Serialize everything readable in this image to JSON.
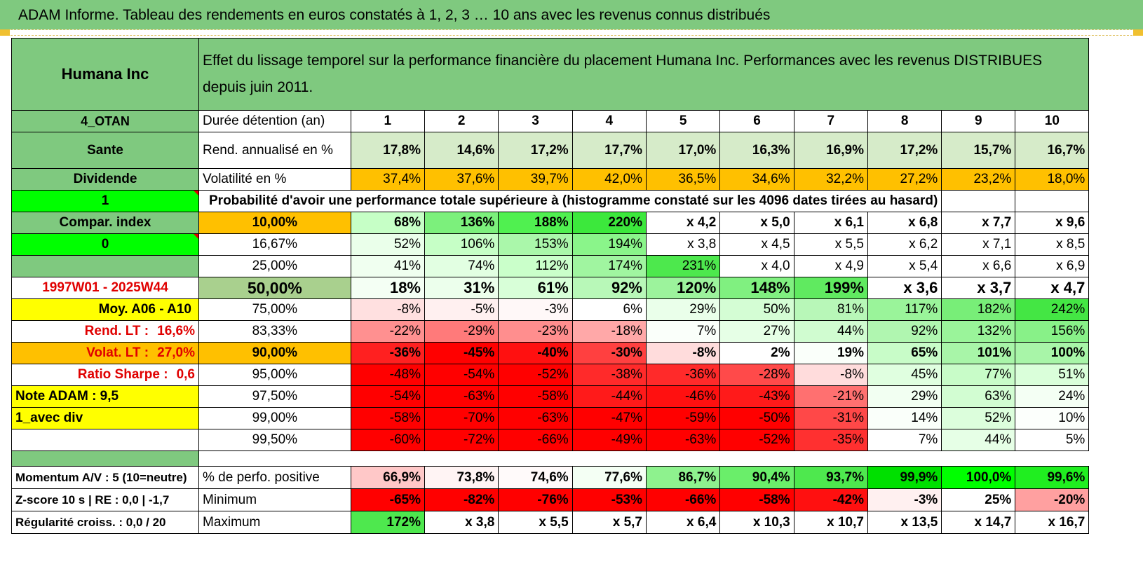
{
  "page": {
    "title": "ADAM Informe. Tableau des rendements en euros constatés à 1, 2, 3 … 10 ans avec les revenus connus distribués"
  },
  "header": {
    "asset_name": "Humana Inc",
    "description": "Effet du lissage temporel sur la performance financière du placement Humana Inc. Performances avec les revenus DISTRIBUES depuis juin 2011."
  },
  "summary": {
    "category": "4_OTAN",
    "duration_label": "Durée détention (an)",
    "years": [
      "1",
      "2",
      "3",
      "4",
      "5",
      "6",
      "7",
      "8",
      "9",
      "10"
    ],
    "sector": "Sante",
    "rend_label": "Rend. annualisé en %",
    "rend": [
      "17,8%",
      "14,6%",
      "17,2%",
      "17,7%",
      "17,0%",
      "16,3%",
      "16,9%",
      "17,2%",
      "15,7%",
      "16,7%"
    ],
    "income_type": "Dividende",
    "vol_label": "Volatilité en %",
    "vol": [
      "37,4%",
      "37,6%",
      "39,7%",
      "42,0%",
      "36,5%",
      "34,6%",
      "32,2%",
      "27,2%",
      "23,2%",
      "18,0%"
    ],
    "flag_value": "1",
    "prob_title": "Probabilité d'avoir une performance totale supérieure à (histogramme constaté sur les 4096 dates tirées au hasard)"
  },
  "side": {
    "compar_index": "Compar. index",
    "compar_value": "0",
    "period": "1997W01 - 2025W44",
    "moy": "Moy. A06 - A10",
    "rend_lt_label": "Rend. LT :",
    "rend_lt_value": "16,6%",
    "volat_lt_label": "Volat. LT :",
    "volat_lt_value": "27,0%",
    "sharpe_label": "Ratio Sharpe :",
    "sharpe_value": "0,6",
    "note": "Note ADAM : 9,5",
    "avec_div": "1_avec div"
  },
  "probability_rows": [
    {
      "pct": "10,00%",
      "values": [
        "68%",
        "136%",
        "188%",
        "220%",
        "x 4,2",
        "x 5,0",
        "x 6,1",
        "x 6,8",
        "x 7,7",
        "x 9,6"
      ]
    },
    {
      "pct": "16,67%",
      "values": [
        "52%",
        "106%",
        "153%",
        "194%",
        "x 3,8",
        "x 4,5",
        "x 5,5",
        "x 6,2",
        "x 7,1",
        "x 8,5"
      ]
    },
    {
      "pct": "25,00%",
      "values": [
        "41%",
        "74%",
        "112%",
        "174%",
        "231%",
        "x 4,0",
        "x 4,9",
        "x 5,4",
        "x 6,6",
        "x 6,9"
      ]
    },
    {
      "pct": "50,00%",
      "values": [
        "18%",
        "31%",
        "61%",
        "92%",
        "120%",
        "148%",
        "199%",
        "x 3,6",
        "x 3,7",
        "x 4,7"
      ]
    },
    {
      "pct": "75,00%",
      "values": [
        "-8%",
        "-5%",
        "-3%",
        "6%",
        "29%",
        "50%",
        "81%",
        "117%",
        "182%",
        "242%"
      ]
    },
    {
      "pct": "83,33%",
      "values": [
        "-22%",
        "-29%",
        "-23%",
        "-18%",
        "7%",
        "27%",
        "44%",
        "92%",
        "132%",
        "156%"
      ]
    },
    {
      "pct": "90,00%",
      "values": [
        "-36%",
        "-45%",
        "-40%",
        "-30%",
        "-8%",
        "2%",
        "19%",
        "65%",
        "101%",
        "100%"
      ]
    },
    {
      "pct": "95,00%",
      "values": [
        "-48%",
        "-54%",
        "-52%",
        "-38%",
        "-36%",
        "-28%",
        "-8%",
        "45%",
        "77%",
        "51%"
      ]
    },
    {
      "pct": "97,50%",
      "values": [
        "-54%",
        "-63%",
        "-58%",
        "-44%",
        "-46%",
        "-43%",
        "-21%",
        "29%",
        "63%",
        "24%"
      ]
    },
    {
      "pct": "99,00%",
      "values": [
        "-58%",
        "-70%",
        "-63%",
        "-47%",
        "-59%",
        "-50%",
        "-31%",
        "14%",
        "52%",
        "10%"
      ]
    },
    {
      "pct": "99,50%",
      "values": [
        "-60%",
        "-72%",
        "-66%",
        "-49%",
        "-63%",
        "-52%",
        "-35%",
        "7%",
        "44%",
        "5%"
      ]
    }
  ],
  "stats": {
    "momentum": "Momentum A/V : 5 (10=neutre)",
    "zscore": "Z-score 10 s | RE : 0,0 | -1,7",
    "regularite": "Régularité croiss. : 0,0 / 20",
    "positive_label": "% de perfo. positive",
    "positive": [
      "66,9%",
      "73,8%",
      "74,6%",
      "77,6%",
      "86,7%",
      "90,4%",
      "93,7%",
      "99,9%",
      "100,0%",
      "99,6%"
    ],
    "min_label": "Minimum",
    "min": [
      "-65%",
      "-82%",
      "-76%",
      "-53%",
      "-66%",
      "-58%",
      "-42%",
      "-3%",
      "25%",
      "-20%"
    ],
    "max_label": "Maximum",
    "max": [
      "172%",
      "x 3,8",
      "x 5,5",
      "x 5,7",
      "x 6,4",
      "x 10,3",
      "x 10,7",
      "x 13,5",
      "x 14,7",
      "x 16,7"
    ]
  },
  "colors": {
    "header_green": "#7fc97f",
    "bright_green": "#00ff00",
    "orange": "#ffc000",
    "yellow": "#ffff00",
    "red": "#ff0000",
    "label_red": "#e00000"
  }
}
